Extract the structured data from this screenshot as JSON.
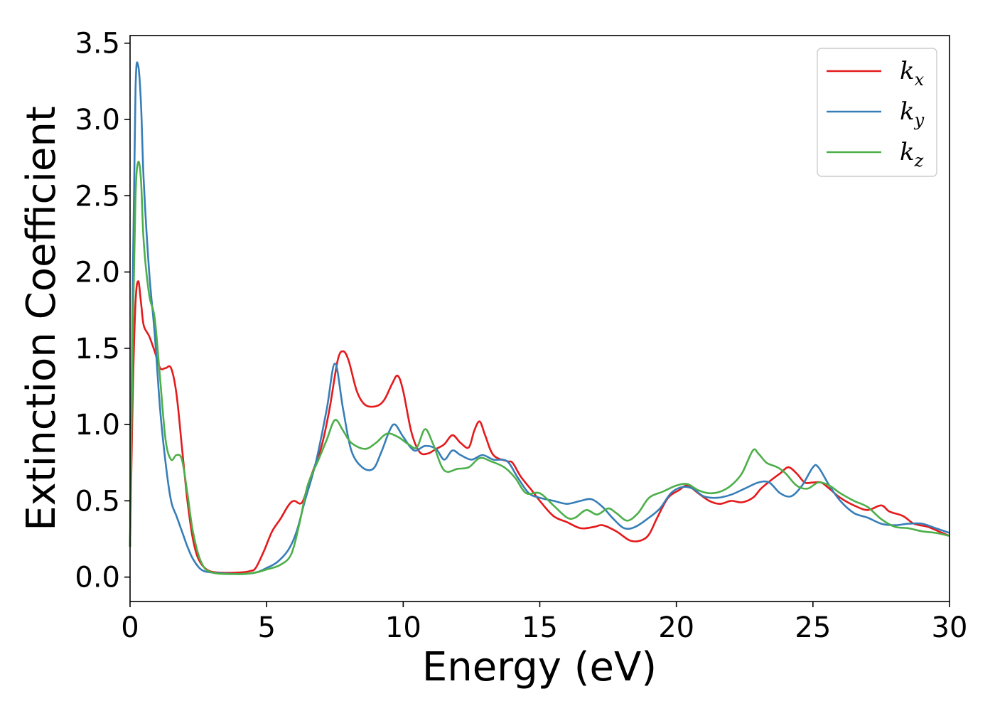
{
  "chart_data": {
    "type": "line",
    "title": "",
    "xlabel": "Energy (eV)",
    "ylabel": "Extinction Coefficient",
    "xlim": [
      0,
      30
    ],
    "ylim": [
      -0.16,
      3.55
    ],
    "xticks": [
      0,
      5,
      10,
      15,
      20,
      25,
      30
    ],
    "yticks": [
      0.0,
      0.5,
      1.0,
      1.5,
      2.0,
      2.5,
      3.0,
      3.5
    ],
    "xtick_labels": [
      "0",
      "5",
      "10",
      "15",
      "20",
      "25",
      "30"
    ],
    "ytick_labels": [
      "0.0",
      "0.5",
      "1.0",
      "1.5",
      "2.0",
      "2.5",
      "3.0",
      "3.5"
    ],
    "grid": false,
    "legend": "top-right",
    "series": [
      {
        "name": "k",
        "subscript": "x",
        "color": "#e41a1c",
        "points": [
          [
            0,
            0.2
          ],
          [
            0.1,
            1.2
          ],
          [
            0.2,
            1.8
          ],
          [
            0.3,
            1.94
          ],
          [
            0.4,
            1.8
          ],
          [
            0.5,
            1.65
          ],
          [
            0.7,
            1.58
          ],
          [
            0.9,
            1.48
          ],
          [
            1.1,
            1.37
          ],
          [
            1.3,
            1.37
          ],
          [
            1.5,
            1.37
          ],
          [
            1.7,
            1.2
          ],
          [
            1.9,
            0.85
          ],
          [
            2.1,
            0.5
          ],
          [
            2.3,
            0.25
          ],
          [
            2.5,
            0.12
          ],
          [
            2.8,
            0.05
          ],
          [
            3.2,
            0.03
          ],
          [
            4.0,
            0.03
          ],
          [
            4.4,
            0.04
          ],
          [
            4.6,
            0.06
          ],
          [
            4.9,
            0.17
          ],
          [
            5.2,
            0.3
          ],
          [
            5.5,
            0.38
          ],
          [
            5.8,
            0.47
          ],
          [
            6.0,
            0.5
          ],
          [
            6.3,
            0.49
          ],
          [
            6.6,
            0.65
          ],
          [
            7.0,
            0.85
          ],
          [
            7.3,
            1.1
          ],
          [
            7.6,
            1.42
          ],
          [
            7.8,
            1.48
          ],
          [
            8.0,
            1.42
          ],
          [
            8.3,
            1.22
          ],
          [
            8.6,
            1.13
          ],
          [
            9.0,
            1.12
          ],
          [
            9.3,
            1.16
          ],
          [
            9.6,
            1.27
          ],
          [
            9.8,
            1.32
          ],
          [
            10.0,
            1.22
          ],
          [
            10.3,
            0.95
          ],
          [
            10.6,
            0.82
          ],
          [
            10.9,
            0.81
          ],
          [
            11.2,
            0.84
          ],
          [
            11.5,
            0.87
          ],
          [
            11.8,
            0.93
          ],
          [
            12.1,
            0.88
          ],
          [
            12.4,
            0.85
          ],
          [
            12.6,
            0.96
          ],
          [
            12.8,
            1.02
          ],
          [
            13.0,
            0.93
          ],
          [
            13.3,
            0.8
          ],
          [
            13.8,
            0.76
          ],
          [
            14.0,
            0.75
          ],
          [
            14.3,
            0.66
          ],
          [
            14.7,
            0.57
          ],
          [
            15.0,
            0.5
          ],
          [
            15.5,
            0.4
          ],
          [
            16.0,
            0.36
          ],
          [
            16.5,
            0.32
          ],
          [
            17.0,
            0.33
          ],
          [
            17.3,
            0.34
          ],
          [
            17.8,
            0.3
          ],
          [
            18.3,
            0.24
          ],
          [
            18.7,
            0.24
          ],
          [
            19.0,
            0.28
          ],
          [
            19.3,
            0.39
          ],
          [
            19.7,
            0.52
          ],
          [
            20.1,
            0.57
          ],
          [
            20.4,
            0.6
          ],
          [
            20.8,
            0.55
          ],
          [
            21.2,
            0.5
          ],
          [
            21.6,
            0.48
          ],
          [
            22.0,
            0.5
          ],
          [
            22.4,
            0.49
          ],
          [
            22.8,
            0.52
          ],
          [
            23.1,
            0.58
          ],
          [
            23.5,
            0.64
          ],
          [
            23.8,
            0.68
          ],
          [
            24.1,
            0.72
          ],
          [
            24.4,
            0.68
          ],
          [
            24.7,
            0.62
          ],
          [
            25.0,
            0.62
          ],
          [
            25.3,
            0.62
          ],
          [
            25.6,
            0.58
          ],
          [
            26.0,
            0.52
          ],
          [
            26.5,
            0.47
          ],
          [
            27.0,
            0.44
          ],
          [
            27.5,
            0.47
          ],
          [
            27.8,
            0.43
          ],
          [
            28.3,
            0.4
          ],
          [
            28.7,
            0.35
          ],
          [
            29.2,
            0.33
          ],
          [
            29.6,
            0.3
          ],
          [
            30.0,
            0.27
          ]
        ]
      },
      {
        "name": "k",
        "subscript": "y",
        "color": "#377eb8",
        "points": [
          [
            0,
            0.2
          ],
          [
            0.1,
            1.9
          ],
          [
            0.2,
            3.2
          ],
          [
            0.3,
            3.35
          ],
          [
            0.4,
            3.1
          ],
          [
            0.5,
            2.6
          ],
          [
            0.7,
            2.0
          ],
          [
            0.9,
            1.6
          ],
          [
            1.1,
            1.1
          ],
          [
            1.3,
            0.75
          ],
          [
            1.5,
            0.5
          ],
          [
            1.7,
            0.4
          ],
          [
            1.9,
            0.3
          ],
          [
            2.1,
            0.2
          ],
          [
            2.3,
            0.12
          ],
          [
            2.6,
            0.05
          ],
          [
            3.0,
            0.03
          ],
          [
            4.0,
            0.02
          ],
          [
            4.6,
            0.03
          ],
          [
            5.0,
            0.06
          ],
          [
            5.4,
            0.1
          ],
          [
            5.8,
            0.18
          ],
          [
            6.1,
            0.3
          ],
          [
            6.4,
            0.5
          ],
          [
            6.8,
            0.75
          ],
          [
            7.2,
            1.1
          ],
          [
            7.5,
            1.4
          ],
          [
            7.8,
            1.1
          ],
          [
            8.1,
            0.83
          ],
          [
            8.5,
            0.72
          ],
          [
            8.9,
            0.71
          ],
          [
            9.2,
            0.82
          ],
          [
            9.5,
            0.96
          ],
          [
            9.7,
            1.0
          ],
          [
            10.0,
            0.92
          ],
          [
            10.4,
            0.83
          ],
          [
            10.8,
            0.86
          ],
          [
            11.2,
            0.84
          ],
          [
            11.5,
            0.77
          ],
          [
            11.8,
            0.83
          ],
          [
            12.1,
            0.8
          ],
          [
            12.5,
            0.77
          ],
          [
            12.9,
            0.8
          ],
          [
            13.3,
            0.77
          ],
          [
            13.8,
            0.76
          ],
          [
            14.2,
            0.65
          ],
          [
            14.6,
            0.55
          ],
          [
            15.0,
            0.52
          ],
          [
            15.5,
            0.5
          ],
          [
            16.0,
            0.48
          ],
          [
            16.5,
            0.5
          ],
          [
            16.9,
            0.51
          ],
          [
            17.3,
            0.46
          ],
          [
            17.7,
            0.38
          ],
          [
            18.1,
            0.32
          ],
          [
            18.5,
            0.33
          ],
          [
            19.0,
            0.39
          ],
          [
            19.4,
            0.45
          ],
          [
            19.8,
            0.55
          ],
          [
            20.2,
            0.59
          ],
          [
            20.6,
            0.58
          ],
          [
            21.0,
            0.53
          ],
          [
            21.5,
            0.52
          ],
          [
            22.0,
            0.54
          ],
          [
            22.5,
            0.58
          ],
          [
            23.0,
            0.62
          ],
          [
            23.4,
            0.62
          ],
          [
            23.8,
            0.55
          ],
          [
            24.2,
            0.53
          ],
          [
            24.6,
            0.6
          ],
          [
            25.0,
            0.72
          ],
          [
            25.2,
            0.72
          ],
          [
            25.6,
            0.6
          ],
          [
            26.0,
            0.5
          ],
          [
            26.5,
            0.42
          ],
          [
            27.0,
            0.39
          ],
          [
            27.5,
            0.35
          ],
          [
            28.0,
            0.34
          ],
          [
            28.5,
            0.35
          ],
          [
            29.0,
            0.35
          ],
          [
            29.5,
            0.32
          ],
          [
            30.0,
            0.29
          ]
        ]
      },
      {
        "name": "k",
        "subscript": "z",
        "color": "#4daf4a",
        "points": [
          [
            0,
            0.2
          ],
          [
            0.1,
            1.6
          ],
          [
            0.2,
            2.5
          ],
          [
            0.3,
            2.72
          ],
          [
            0.4,
            2.6
          ],
          [
            0.5,
            2.2
          ],
          [
            0.7,
            1.85
          ],
          [
            0.9,
            1.7
          ],
          [
            1.1,
            1.3
          ],
          [
            1.3,
            0.9
          ],
          [
            1.5,
            0.77
          ],
          [
            1.7,
            0.8
          ],
          [
            1.9,
            0.77
          ],
          [
            2.1,
            0.55
          ],
          [
            2.3,
            0.3
          ],
          [
            2.6,
            0.1
          ],
          [
            3.0,
            0.03
          ],
          [
            4.0,
            0.02
          ],
          [
            4.6,
            0.03
          ],
          [
            5.0,
            0.05
          ],
          [
            5.5,
            0.08
          ],
          [
            5.9,
            0.15
          ],
          [
            6.2,
            0.35
          ],
          [
            6.5,
            0.6
          ],
          [
            6.9,
            0.77
          ],
          [
            7.2,
            0.9
          ],
          [
            7.5,
            1.03
          ],
          [
            7.8,
            0.96
          ],
          [
            8.1,
            0.88
          ],
          [
            8.6,
            0.84
          ],
          [
            9.0,
            0.88
          ],
          [
            9.4,
            0.94
          ],
          [
            9.8,
            0.92
          ],
          [
            10.2,
            0.87
          ],
          [
            10.5,
            0.85
          ],
          [
            10.8,
            0.97
          ],
          [
            11.1,
            0.87
          ],
          [
            11.5,
            0.7
          ],
          [
            12.0,
            0.71
          ],
          [
            12.4,
            0.72
          ],
          [
            12.8,
            0.78
          ],
          [
            13.2,
            0.76
          ],
          [
            13.7,
            0.72
          ],
          [
            14.1,
            0.65
          ],
          [
            14.5,
            0.55
          ],
          [
            15.0,
            0.55
          ],
          [
            15.5,
            0.47
          ],
          [
            16.0,
            0.39
          ],
          [
            16.3,
            0.39
          ],
          [
            16.7,
            0.44
          ],
          [
            17.1,
            0.41
          ],
          [
            17.5,
            0.45
          ],
          [
            17.8,
            0.42
          ],
          [
            18.2,
            0.37
          ],
          [
            18.6,
            0.42
          ],
          [
            19.0,
            0.52
          ],
          [
            19.5,
            0.56
          ],
          [
            20.0,
            0.6
          ],
          [
            20.4,
            0.61
          ],
          [
            20.8,
            0.57
          ],
          [
            21.2,
            0.55
          ],
          [
            21.6,
            0.56
          ],
          [
            22.0,
            0.6
          ],
          [
            22.4,
            0.68
          ],
          [
            22.8,
            0.83
          ],
          [
            23.0,
            0.81
          ],
          [
            23.3,
            0.75
          ],
          [
            23.7,
            0.72
          ],
          [
            24.0,
            0.68
          ],
          [
            24.4,
            0.6
          ],
          [
            24.8,
            0.58
          ],
          [
            25.2,
            0.62
          ],
          [
            25.6,
            0.6
          ],
          [
            26.0,
            0.55
          ],
          [
            26.5,
            0.5
          ],
          [
            27.0,
            0.46
          ],
          [
            27.5,
            0.38
          ],
          [
            28.0,
            0.33
          ],
          [
            28.5,
            0.32
          ],
          [
            29.0,
            0.3
          ],
          [
            29.5,
            0.29
          ],
          [
            30.0,
            0.27
          ]
        ]
      }
    ]
  }
}
